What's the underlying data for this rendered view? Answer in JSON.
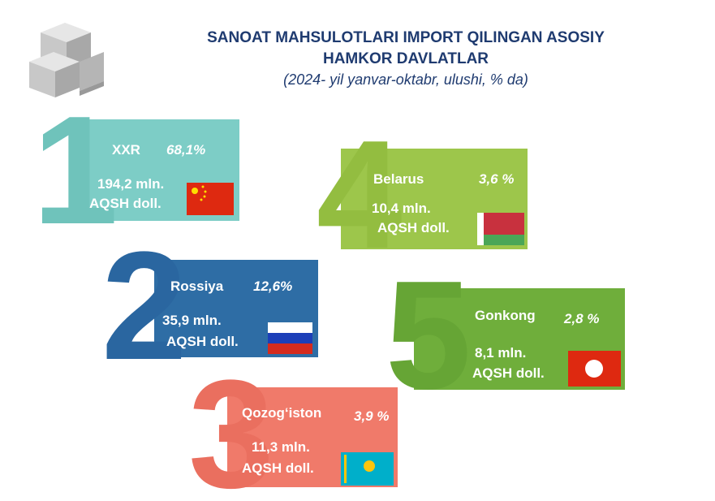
{
  "header": {
    "title_lines": [
      "SANOAT MAHSULOTLARI IMPORT QILINGAN ASOSIY",
      "HAMKOR DAVLATLAR"
    ],
    "subtitle": "(2024- yil yanvar-oktabr, ulushi, % da)"
  },
  "partners": [
    {
      "rank": "1",
      "country": "XXR",
      "share": "68,1%",
      "amount": "194,2 mln.",
      "unit": "AQSH doll."
    },
    {
      "rank": "2",
      "country": "Rossiya",
      "share": "12,6%",
      "amount": "35,9 mln.",
      "unit": "AQSH doll."
    },
    {
      "rank": "3",
      "country": "Qozog‘iston",
      "share": "3,9 %",
      "amount": "11,3 mln.",
      "unit": "AQSH doll."
    },
    {
      "rank": "4",
      "country": "Belarus",
      "share": "3,6 %",
      "amount": "10,4 mln.",
      "unit": "AQSH doll."
    },
    {
      "rank": "5",
      "country": "Gonkong",
      "share": "2,8 %",
      "amount": "8,1 mln.",
      "unit": "AQSH doll."
    }
  ]
}
